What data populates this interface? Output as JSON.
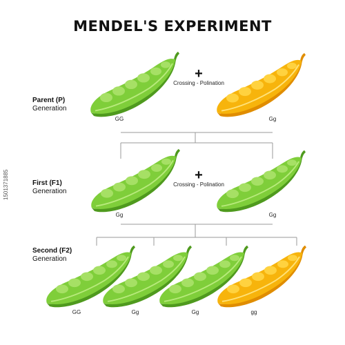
{
  "title": "MENDEL'S EXPERIMENT",
  "colors": {
    "green_main": "#7fce3a",
    "green_dark": "#4f9a1e",
    "green_light": "#a6e065",
    "yellow_main": "#f7b40c",
    "yellow_dark": "#e08d00",
    "yellow_light": "#ffd23f",
    "line": "#9a9a9a"
  },
  "generations": {
    "parent": {
      "title": "Parent (P)",
      "subtitle": "Generation"
    },
    "first": {
      "title": "First (F1)",
      "subtitle": "Generation"
    },
    "second": {
      "title": "Second (F2)",
      "subtitle": "Generation"
    }
  },
  "crossing": {
    "p": {
      "symbol": "+",
      "label": "Crossing - Polination"
    },
    "f1": {
      "symbol": "+",
      "label": "Crossing - Polination"
    }
  },
  "pods": {
    "parent": [
      {
        "genotype": "GG",
        "color": "green"
      },
      {
        "genotype": "Gg",
        "color": "yellow"
      }
    ],
    "f1": [
      {
        "genotype": "Gg",
        "color": "green"
      },
      {
        "genotype": "Gg",
        "color": "green"
      }
    ],
    "f2": [
      {
        "genotype": "GG",
        "color": "green"
      },
      {
        "genotype": "Gg",
        "color": "green"
      },
      {
        "genotype": "Gg",
        "color": "green"
      },
      {
        "genotype": "gg",
        "color": "yellow"
      }
    ]
  },
  "watermark_id": "1501371885"
}
